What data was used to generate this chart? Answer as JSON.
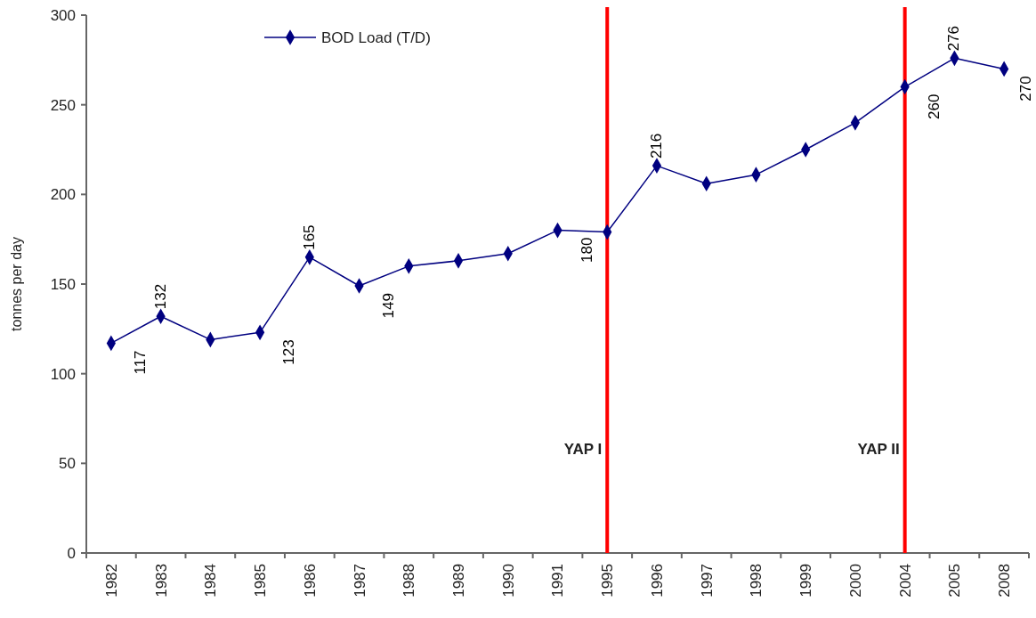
{
  "chart_data": {
    "type": "line",
    "ylabel": "tonnes per day",
    "categories": [
      "1982",
      "1983",
      "1984",
      "1985",
      "1986",
      "1987",
      "1988",
      "1989",
      "1990",
      "1991",
      "1995",
      "1996",
      "1997",
      "1998",
      "1999",
      "2000",
      "2004",
      "2005",
      "2008"
    ],
    "series": [
      {
        "name": "BOD Load (T/D)",
        "color": "#000080",
        "values": [
          117,
          132,
          119,
          123,
          165,
          149,
          160,
          163,
          167,
          180,
          179,
          216,
          206,
          211,
          225,
          240,
          260,
          276,
          270
        ],
        "value_labels": [
          "117",
          "132",
          null,
          "123",
          "165",
          "149",
          null,
          null,
          null,
          "180",
          null,
          "216",
          null,
          null,
          null,
          null,
          "260",
          "276",
          "270"
        ]
      }
    ],
    "ylim": [
      0,
      300
    ],
    "yticks": [
      0,
      50,
      100,
      150,
      200,
      250,
      300
    ],
    "grid": false,
    "legend": "top left",
    "marker": "diamond",
    "line_style": "solid",
    "ref_lines": [
      {
        "axis": "x",
        "value": "1995",
        "label": "YAP I",
        "color": "#ff0000"
      },
      {
        "axis": "x",
        "value": "2004",
        "label": "YAP II",
        "color": "#ff0000"
      }
    ]
  }
}
